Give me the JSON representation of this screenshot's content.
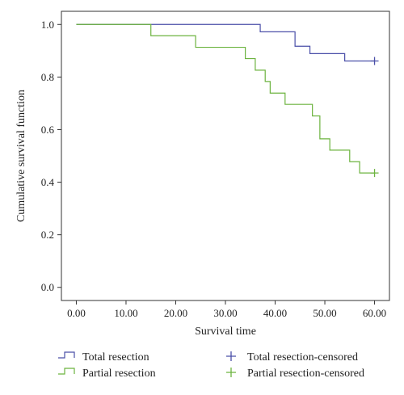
{
  "chart_data": {
    "type": "line",
    "subtype": "kaplan-meier-step",
    "title": "",
    "xlabel": "Survival time",
    "ylabel": "Cumulative survival function",
    "xlim": [
      -3,
      63
    ],
    "ylim": [
      -0.05,
      1.05
    ],
    "x_ticks": [
      0,
      10,
      20,
      30,
      40,
      50,
      60
    ],
    "x_tick_labels": [
      "0.00",
      "10.00",
      "20.00",
      "30.00",
      "40.00",
      "50.00",
      "60.00"
    ],
    "y_ticks": [
      0,
      0.2,
      0.4,
      0.6,
      0.8,
      1.0
    ],
    "y_tick_labels": [
      "0.0",
      "0.2",
      "0.4",
      "0.6",
      "0.8",
      "1.0"
    ],
    "grid": false,
    "legend_position": "bottom",
    "series": [
      {
        "name": "Total resection",
        "color": "#4a4fa8",
        "steps": [
          [
            0,
            1.0
          ],
          [
            37,
            0.972
          ],
          [
            44,
            0.917
          ],
          [
            47,
            0.889
          ],
          [
            54,
            0.861
          ],
          [
            60,
            0.861
          ]
        ],
        "censored": [
          [
            60,
            0.861
          ]
        ],
        "censored_name": "Total resection-censored"
      },
      {
        "name": "Partial resection",
        "color": "#6cb33f",
        "steps": [
          [
            0,
            1.0
          ],
          [
            15,
            0.957
          ],
          [
            24,
            0.913
          ],
          [
            34,
            0.87
          ],
          [
            36,
            0.826
          ],
          [
            38,
            0.783
          ],
          [
            39,
            0.739
          ],
          [
            42,
            0.696
          ],
          [
            47.5,
            0.652
          ],
          [
            49,
            0.565
          ],
          [
            51,
            0.522
          ],
          [
            55,
            0.478
          ],
          [
            57,
            0.435
          ],
          [
            60,
            0.435
          ]
        ],
        "censored": [
          [
            60,
            0.435
          ]
        ],
        "censored_name": "Partial resection-censored"
      }
    ]
  }
}
